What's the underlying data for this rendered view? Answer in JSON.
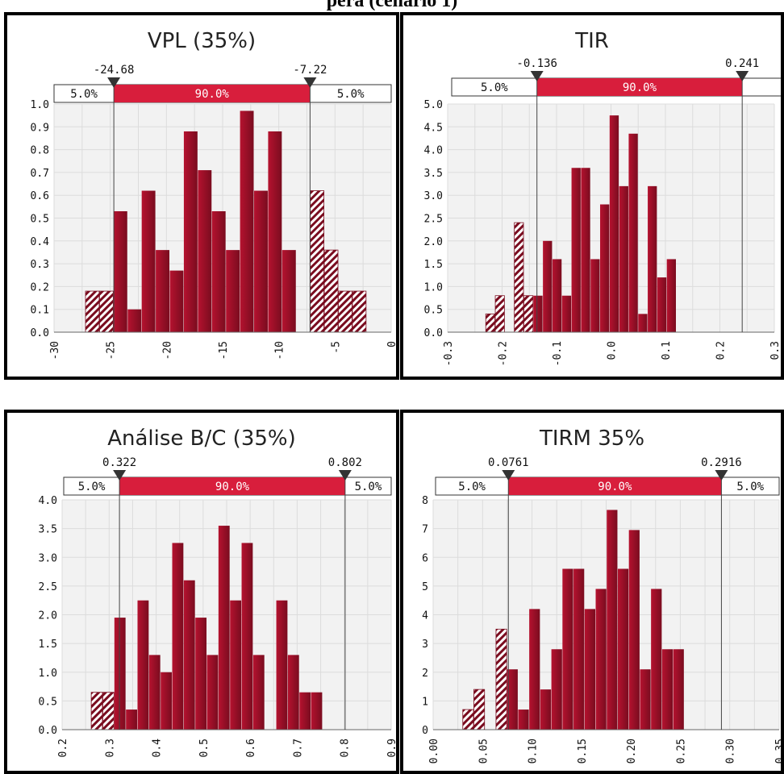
{
  "page": {
    "title": "pera (cenário 1)"
  },
  "colors": {
    "bar": "#b5122f",
    "bar_dark": "#7a0c1f",
    "band": "#d81e3c",
    "plot_bg": "#f2f2f2",
    "grid": "#dcdcdc"
  },
  "chart_data": [
    {
      "type": "bar",
      "title": "VPL (35%)",
      "xlim": [
        -30,
        0
      ],
      "ylim": [
        0,
        1.0
      ],
      "x_ticks": [
        "-30",
        "-25",
        "-20",
        "-15",
        "-10",
        "-5",
        "0"
      ],
      "y_ticks": [
        "0.0",
        "0.1",
        "0.2",
        "0.3",
        "0.4",
        "0.5",
        "0.6",
        "0.7",
        "0.8",
        "0.9",
        "1.0"
      ],
      "bin_start": -27.2,
      "bin_width": 1.25,
      "values": [
        0.18,
        0.18,
        0.53,
        0.1,
        0.62,
        0.36,
        0.27,
        0.88,
        0.71,
        0.53,
        0.36,
        0.97,
        0.62,
        0.88,
        0.36,
        0.0,
        0.62,
        0.36,
        0.18,
        0.18
      ],
      "markers": {
        "left": "-24.68",
        "right": "-7.22",
        "left_value": -24.68,
        "right_value": -7.22
      },
      "bands": {
        "left": "5.0%",
        "middle": "90.0%",
        "right": "5.0%"
      }
    },
    {
      "type": "bar",
      "title": "TIR",
      "xlim": [
        -0.3,
        0.3
      ],
      "ylim": [
        0,
        5.0
      ],
      "x_ticks": [
        "-0.3",
        "-0.2",
        "-0.1",
        "0.0",
        "0.1",
        "0.2",
        "0.3"
      ],
      "y_ticks": [
        "0.0",
        "0.5",
        "1.0",
        "1.5",
        "2.0",
        "2.5",
        "3.0",
        "3.5",
        "4.0",
        "4.5",
        "5.0"
      ],
      "bin_start": -0.23,
      "bin_width": 0.0175,
      "values": [
        0.4,
        0.8,
        0.0,
        2.4,
        0.8,
        0.8,
        2.0,
        1.6,
        0.8,
        3.6,
        3.6,
        1.6,
        2.8,
        4.75,
        3.2,
        4.35,
        0.4,
        3.2,
        1.2,
        1.6
      ],
      "markers": {
        "left": "-0.136",
        "right": "0.241",
        "left_value": -0.136,
        "right_value": 0.241
      },
      "bands": {
        "left": "5.0%",
        "middle": "90.0%",
        "right": ""
      }
    },
    {
      "type": "bar",
      "title": "Análise B/C (35%)",
      "xlim": [
        0.2,
        0.9
      ],
      "ylim": [
        0,
        4.0
      ],
      "x_ticks": [
        "0.2",
        "0.3",
        "0.4",
        "0.5",
        "0.6",
        "0.7",
        "0.8",
        "0.9"
      ],
      "y_ticks": [
        "0.0",
        "0.5",
        "1.0",
        "1.5",
        "2.0",
        "2.5",
        "3.0",
        "3.5",
        "4.0"
      ],
      "bin_start": 0.262,
      "bin_width": 0.0246,
      "values": [
        0.65,
        0.65,
        1.95,
        0.35,
        2.25,
        1.3,
        1.0,
        3.25,
        2.6,
        1.95,
        1.3,
        3.55,
        2.25,
        3.25,
        1.3,
        0.0,
        2.25,
        1.3,
        0.65,
        0.65
      ],
      "markers": {
        "left": "0.322",
        "right": "0.802",
        "left_value": 0.322,
        "right_value": 0.802
      },
      "bands": {
        "left": "5.0%",
        "middle": "90.0%",
        "right": "5.0%"
      }
    },
    {
      "type": "bar",
      "title": "TIRM 35%",
      "xlim": [
        0.0,
        0.35
      ],
      "ylim": [
        0,
        8
      ],
      "x_ticks": [
        "0.00",
        "0.05",
        "0.10",
        "0.15",
        "0.20",
        "0.25",
        "0.30",
        "0.35"
      ],
      "y_ticks": [
        "0",
        "1",
        "2",
        "3",
        "4",
        "5",
        "6",
        "7",
        "8"
      ],
      "bin_start": 0.03,
      "bin_width": 0.0112,
      "values": [
        0.7,
        1.4,
        0.0,
        3.5,
        2.1,
        0.7,
        4.2,
        1.4,
        2.8,
        5.6,
        5.6,
        4.2,
        4.9,
        7.65,
        5.6,
        6.95,
        2.1,
        4.9,
        2.8,
        2.8
      ],
      "markers": {
        "left": "0.0761",
        "right": "0.2916",
        "left_value": 0.0761,
        "right_value": 0.2916
      },
      "bands": {
        "left": "5.0%",
        "middle": "90.0%",
        "right": "5.0%"
      }
    }
  ]
}
